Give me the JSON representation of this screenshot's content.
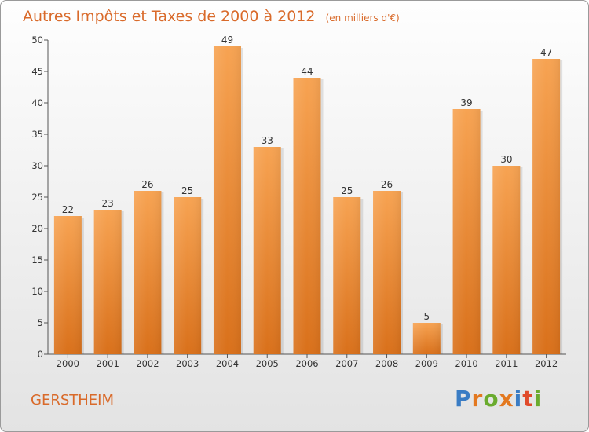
{
  "chart_data": {
    "type": "bar",
    "title": "Autres Impôts et Taxes de 2000 à 2012",
    "subtitle": "(en milliers d'€)",
    "categories": [
      "2000",
      "2001",
      "2002",
      "2003",
      "2004",
      "2005",
      "2006",
      "2007",
      "2008",
      "2009",
      "2010",
      "2011",
      "2012"
    ],
    "values": [
      22,
      23,
      26,
      25,
      49,
      33,
      44,
      25,
      26,
      5,
      39,
      30,
      47
    ],
    "ylim": [
      0,
      50
    ],
    "yticks": [
      0,
      5,
      10,
      15,
      20,
      25,
      30,
      35,
      40,
      45,
      50
    ],
    "grid": false,
    "bar_color": "#f08a2a"
  },
  "footer": {
    "town": "GERSTHEIM",
    "logo_letters": [
      {
        "char": "P",
        "color": "#3a7cc4"
      },
      {
        "char": "r",
        "color": "#e3781f"
      },
      {
        "char": "o",
        "color": "#6aab2e"
      },
      {
        "char": "x",
        "color": "#e3781f"
      },
      {
        "char": "i",
        "color": "#3a7cc4"
      },
      {
        "char": "t",
        "color": "#e04a2a"
      },
      {
        "char": "i",
        "color": "#6aab2e"
      }
    ]
  }
}
